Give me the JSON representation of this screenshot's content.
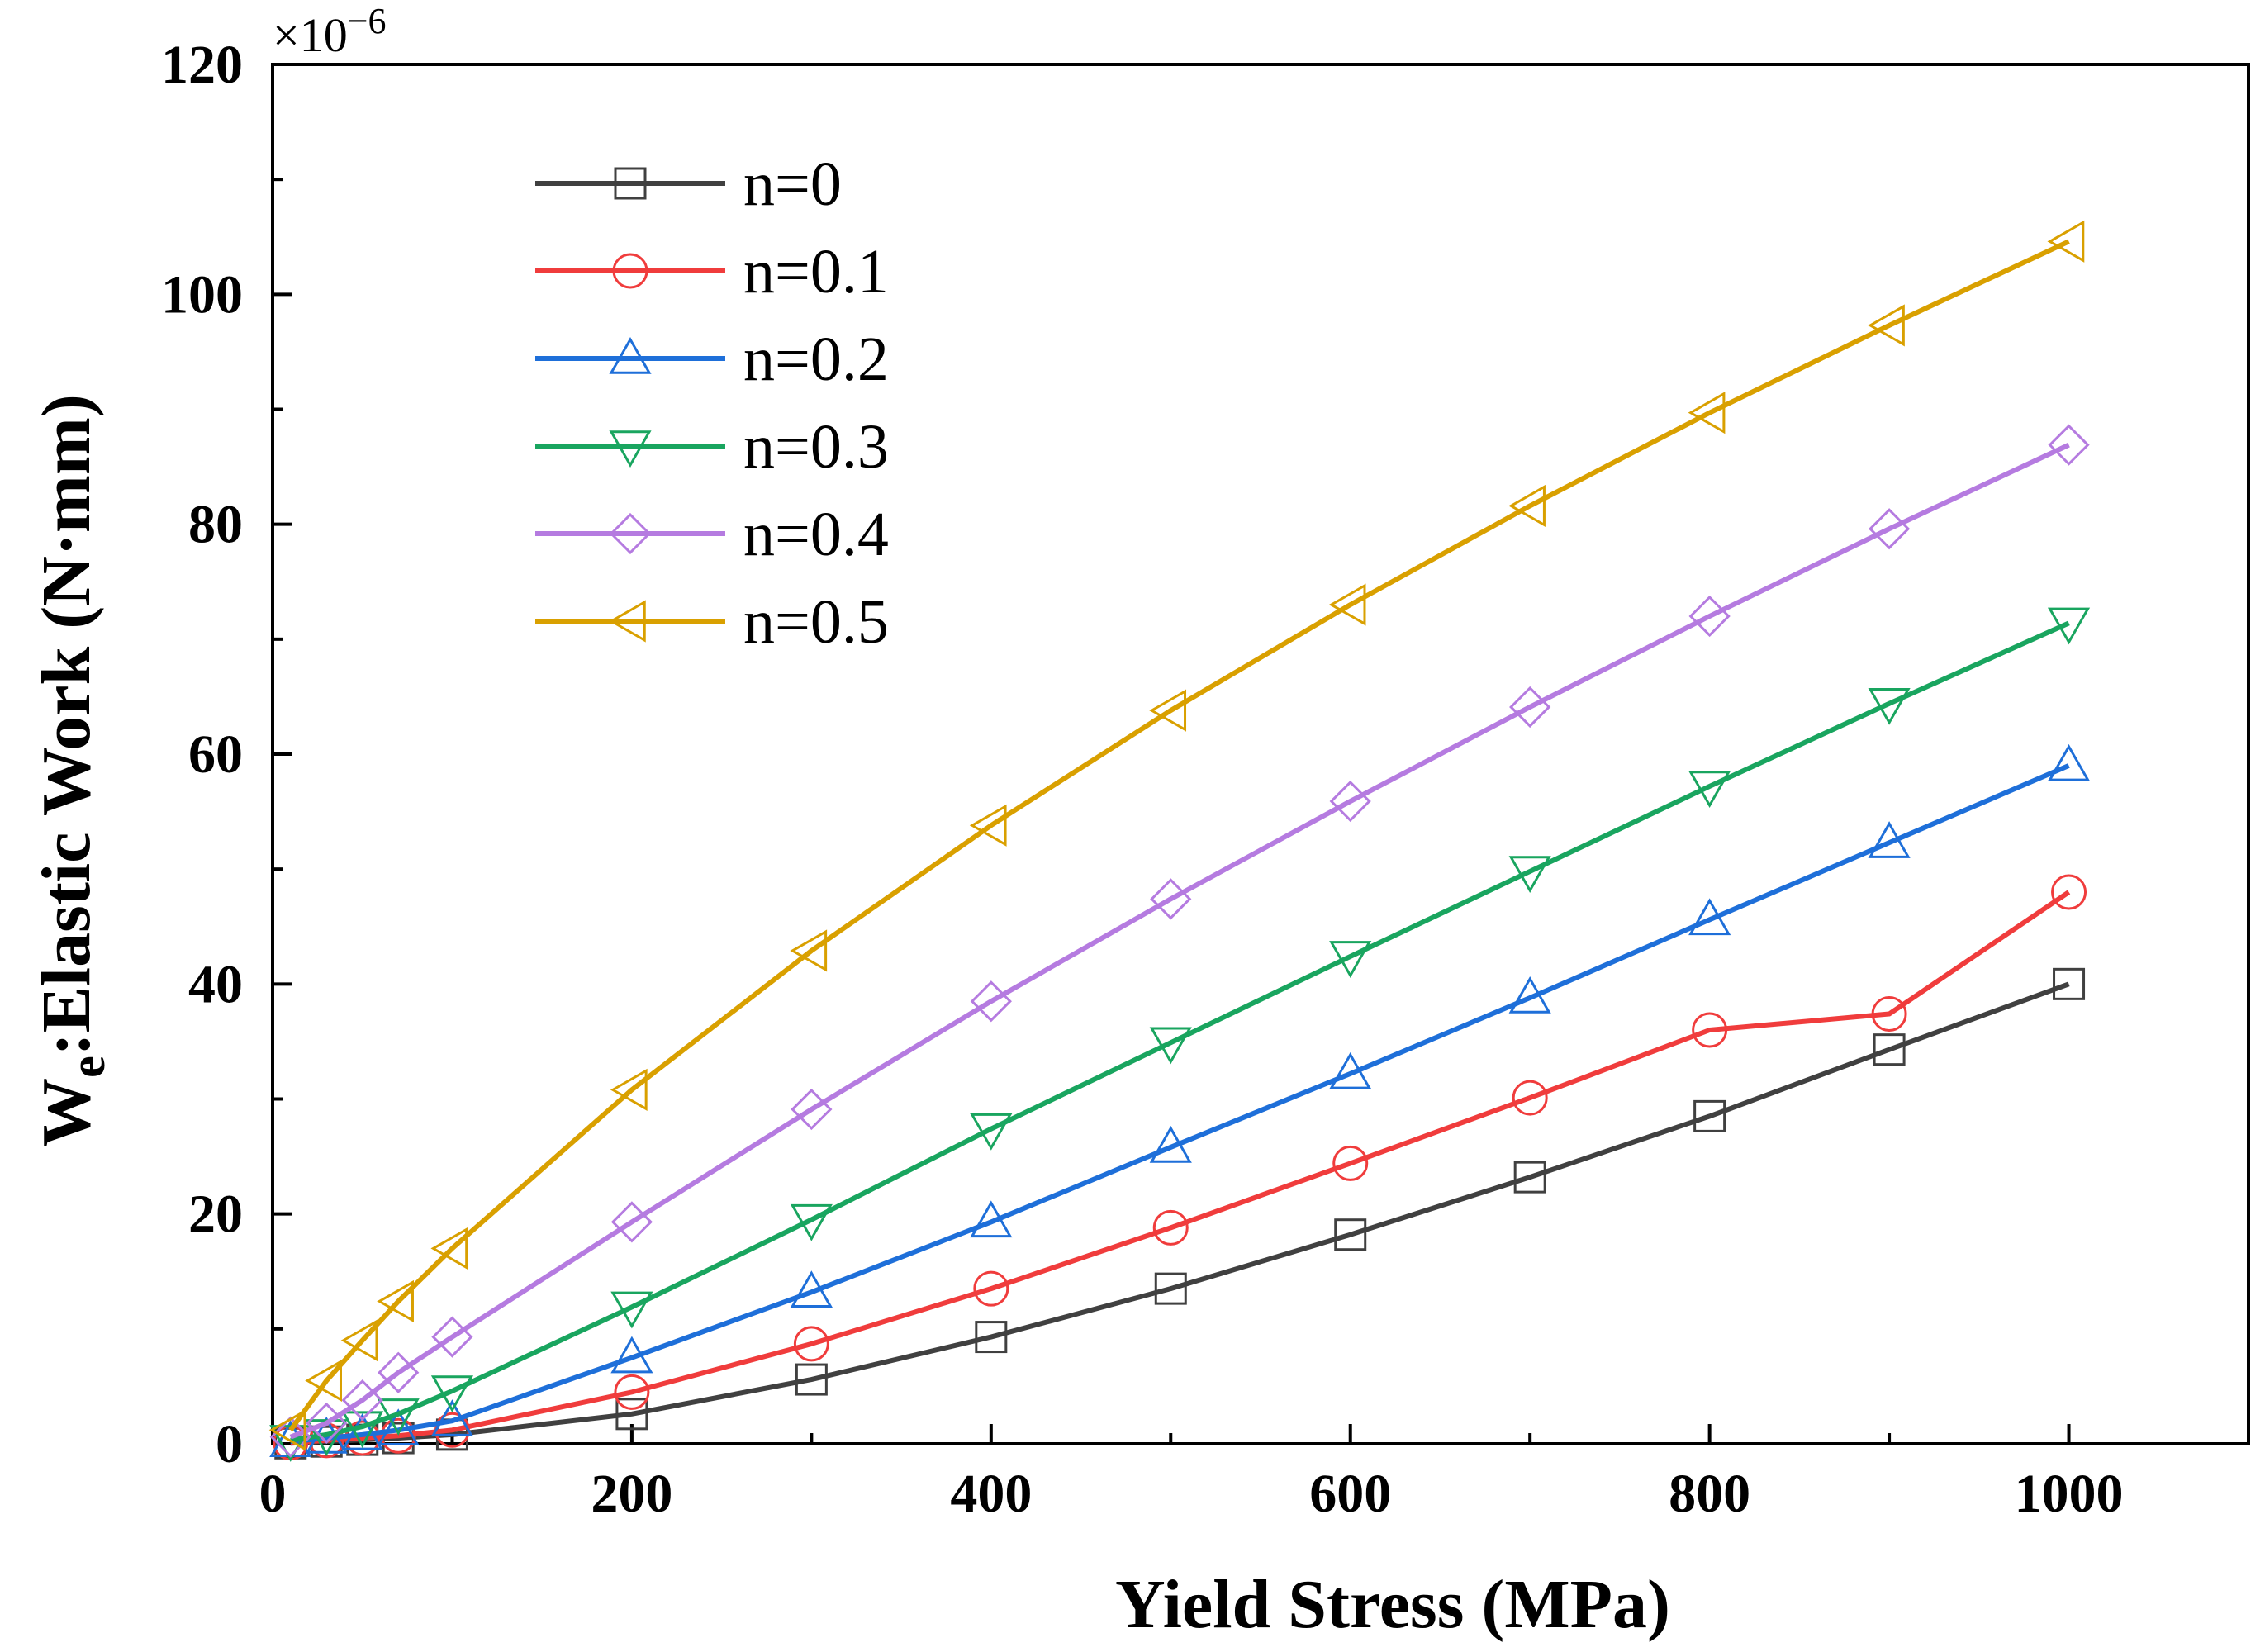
{
  "chart_data": {
    "type": "line",
    "title": "",
    "xlabel": "Yield Stress (MPa)",
    "ylabel_main": "W",
    "ylabel_sub": "e",
    "ylabel_rest": ":Elastic Work (N·mm)",
    "y_multiplier": "×10",
    "y_multiplier_exp": "−6",
    "xlim": [
      0,
      1100
    ],
    "ylim": [
      0,
      120
    ],
    "xticks": [
      0,
      200,
      400,
      600,
      800,
      1000
    ],
    "yticks": [
      0,
      20,
      40,
      60,
      80,
      100,
      120
    ],
    "grid": false,
    "legend_position": "top-left",
    "x": [
      10,
      30,
      50,
      70,
      100,
      200,
      300,
      400,
      500,
      600,
      700,
      800,
      900,
      1000
    ],
    "series": [
      {
        "name": "n=0",
        "color": "#404040",
        "marker": "square",
        "values": [
          0.05,
          0.2,
          0.35,
          0.5,
          0.8,
          2.6,
          5.6,
          9.3,
          13.5,
          18.2,
          23.2,
          28.5,
          34.3,
          40.0
        ]
      },
      {
        "name": "n=0.1",
        "color": "#f03c3c",
        "marker": "circle",
        "values": [
          0.1,
          0.3,
          0.5,
          0.7,
          1.2,
          4.5,
          8.7,
          13.5,
          18.8,
          24.4,
          30.1,
          36.0,
          37.4,
          48.0
        ]
      },
      {
        "name": "n=0.2",
        "color": "#1e6fd9",
        "marker": "triangle-up",
        "values": [
          0.2,
          0.5,
          0.8,
          1.2,
          2.0,
          7.5,
          13.2,
          19.3,
          25.8,
          32.2,
          38.8,
          45.6,
          52.3,
          59.0
        ]
      },
      {
        "name": "n=0.3",
        "color": "#19a55f",
        "marker": "triangle-down",
        "values": [
          0.3,
          0.8,
          1.5,
          2.6,
          4.6,
          11.9,
          19.5,
          27.4,
          34.9,
          42.4,
          49.8,
          57.2,
          64.4,
          71.4
        ]
      },
      {
        "name": "n=0.4",
        "color": "#b57be0",
        "marker": "diamond",
        "values": [
          0.6,
          1.8,
          3.8,
          6.2,
          9.3,
          19.3,
          29.1,
          38.5,
          47.4,
          55.9,
          64.1,
          72.0,
          79.6,
          86.9
        ]
      },
      {
        "name": "n=0.5",
        "color": "#d9a000",
        "marker": "triangle-left",
        "values": [
          1.2,
          5.5,
          9.0,
          12.4,
          17.0,
          30.8,
          42.9,
          53.8,
          63.8,
          73.0,
          81.6,
          89.7,
          97.3,
          104.6
        ]
      }
    ]
  }
}
